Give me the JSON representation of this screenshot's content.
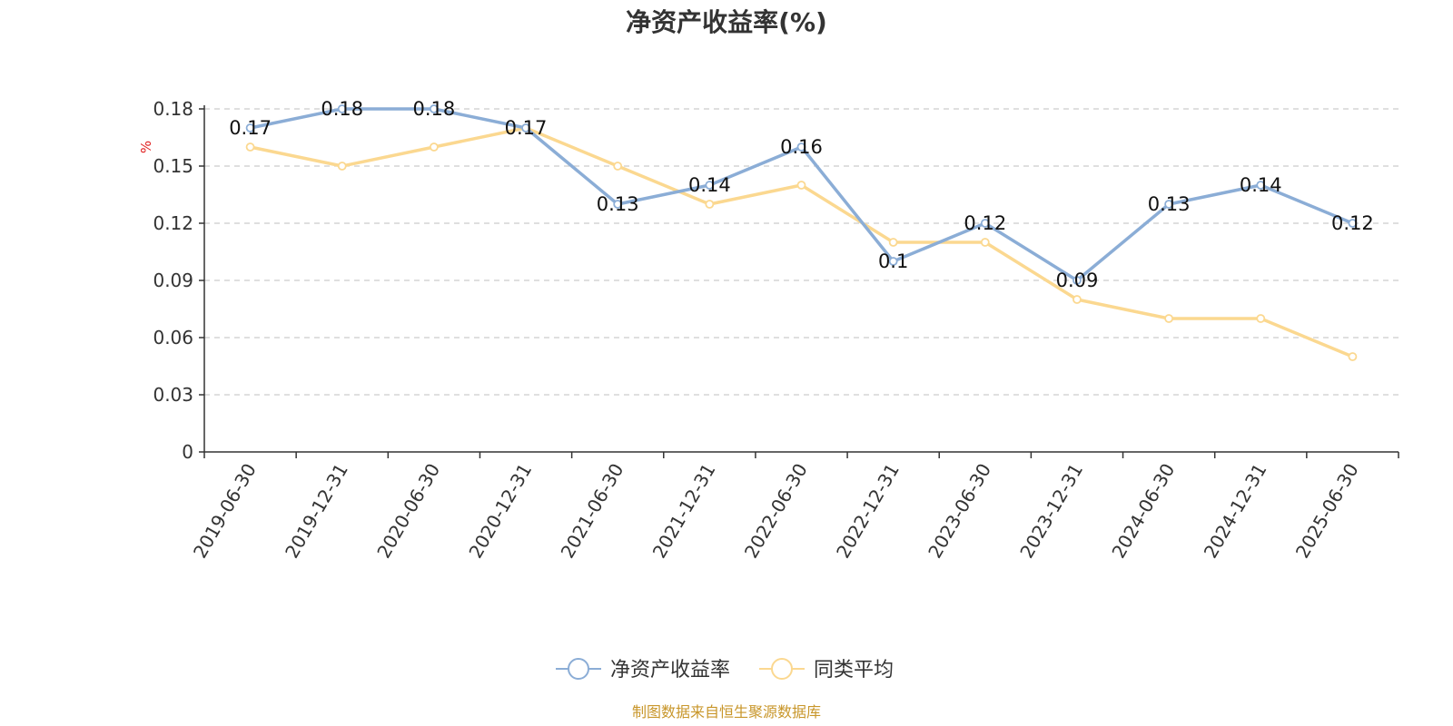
{
  "chart_data": {
    "type": "line",
    "title": "净资产收益率(%)",
    "ylabel": "%",
    "xlabel": "",
    "categories": [
      "2019-06-30",
      "2019-12-31",
      "2020-06-30",
      "2020-12-31",
      "2021-06-30",
      "2021-12-31",
      "2022-06-30",
      "2022-12-31",
      "2023-06-30",
      "2023-12-31",
      "2024-06-30",
      "2024-12-31",
      "2025-06-30"
    ],
    "ylim": [
      0,
      0.18
    ],
    "yticks": [
      "0",
      "0.03",
      "0.06",
      "0.09",
      "0.12",
      "0.15",
      "0.18"
    ],
    "grid": true,
    "legend_position": "bottom-center",
    "series": [
      {
        "name": "净资产收益率",
        "color": "#8badd6",
        "values": [
          0.17,
          0.18,
          0.18,
          0.17,
          0.13,
          0.14,
          0.16,
          0.1,
          0.12,
          0.09,
          0.13,
          0.14,
          0.12
        ],
        "data_labels": [
          "0.17",
          "0.18",
          "0.18",
          "0.17",
          "0.13",
          "0.14",
          "0.16",
          "0.1",
          "0.12",
          "0.09",
          "0.13",
          "0.14",
          "0.12"
        ]
      },
      {
        "name": "同类平均",
        "color": "#fbd890",
        "values": [
          0.16,
          0.15,
          0.16,
          0.17,
          0.15,
          0.13,
          0.14,
          0.11,
          0.11,
          0.08,
          0.07,
          0.07,
          0.05
        ]
      }
    ],
    "source": "制图数据来自恒生聚源数据库"
  }
}
